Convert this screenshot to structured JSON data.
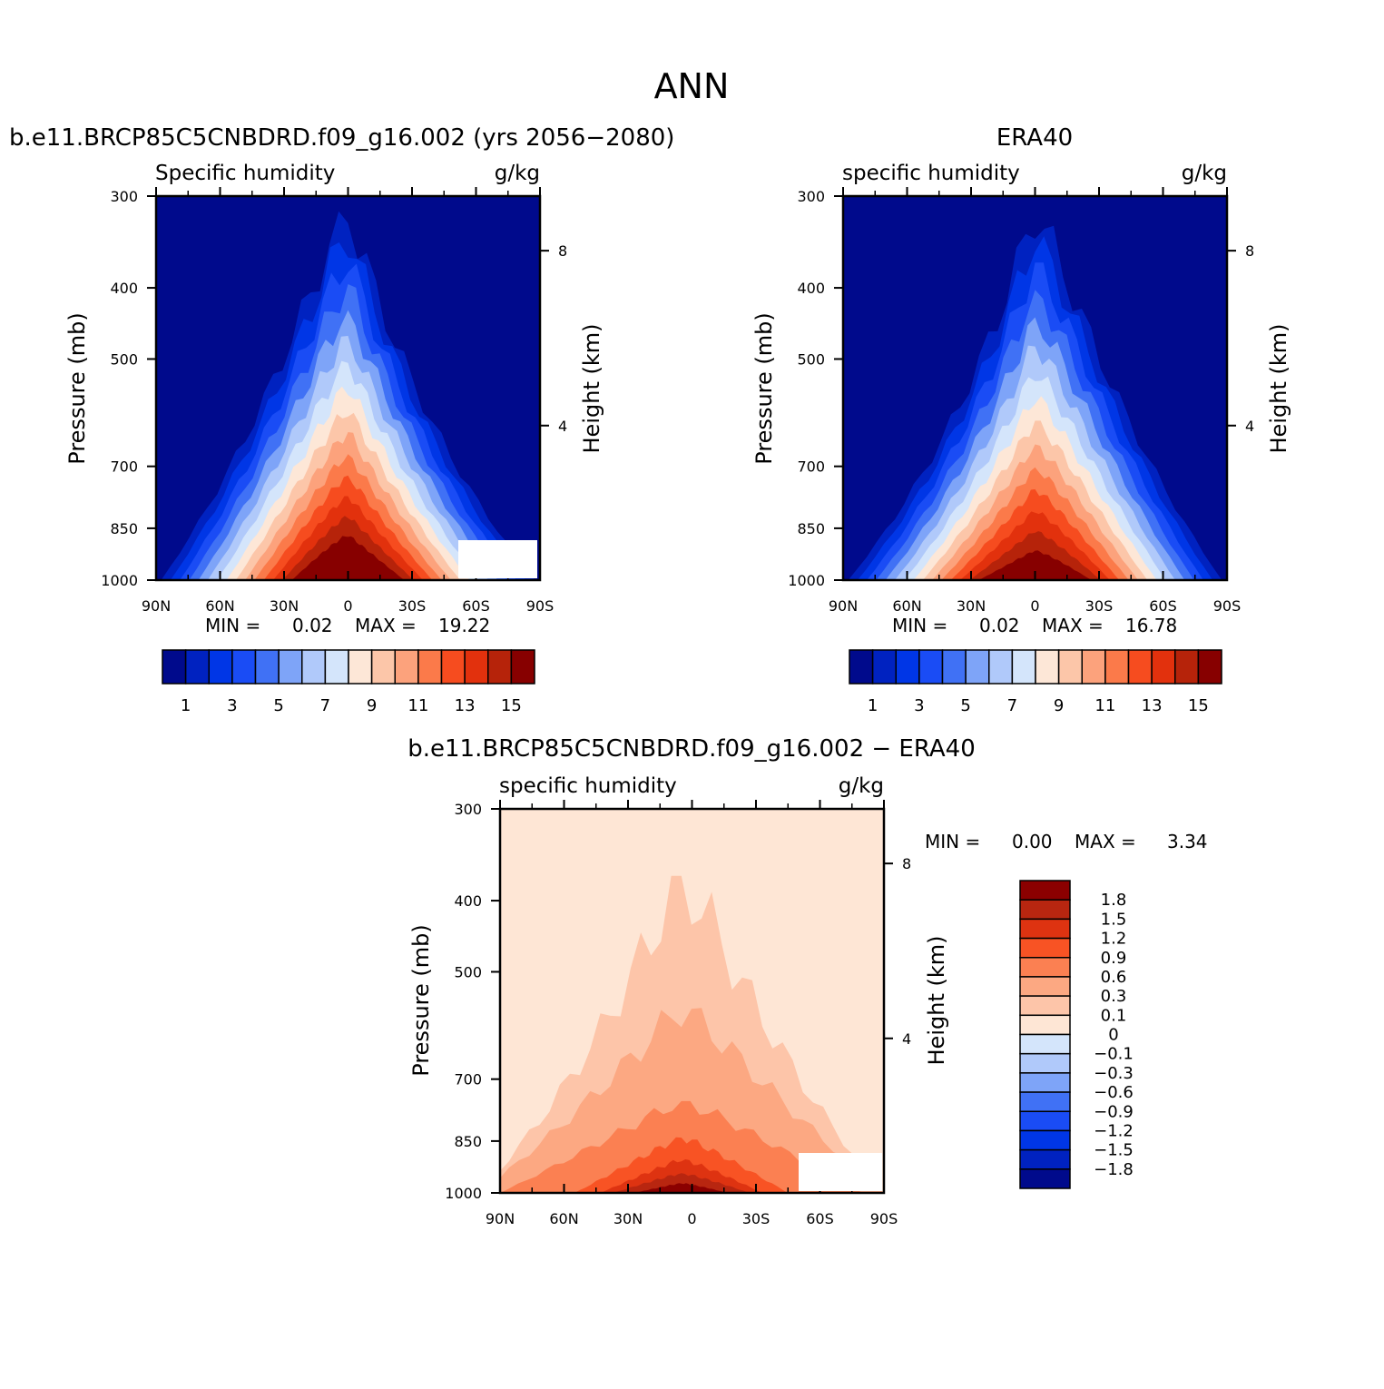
{
  "figure_title": "ANN",
  "difference_colors": [
    "#fee6d5",
    "#fdc5a9",
    "#fca882",
    "#fb8052",
    "#f85324",
    "#de3311",
    "#b82610",
    "#8b0000"
  ],
  "chart_data": [
    {
      "type": "heatmap",
      "title": "b.e11.BRCP85C5CNBDRD.f09_g16.002 (yrs 2056−2080)",
      "variable_label": "Specific humidity",
      "units": "g/kg",
      "xlabel": "",
      "ylabel": "Pressure (mb)",
      "ylabel_right": "Height (km)",
      "x_ticks": [
        "90N",
        "60N",
        "30N",
        "0",
        "30S",
        "60S",
        "90S"
      ],
      "x_range": [
        90,
        -90
      ],
      "y_ticks": [
        "300",
        "400",
        "500",
        "700",
        "850",
        "1000"
      ],
      "y_range_mb": [
        300,
        1000
      ],
      "height_ticks": [
        "8",
        "4"
      ],
      "surface_humidity_peak_lat": 0,
      "surface_humidity_peak_gkg": 19.22,
      "min_label": "MIN =",
      "min_value": "0.02",
      "max_label": "MAX =",
      "max_value": "19.22",
      "contour_levels": [
        1,
        2,
        3,
        4,
        5,
        6,
        7,
        8,
        9,
        10,
        11,
        12,
        13,
        14,
        15
      ],
      "colorbar_ticks": [
        "1",
        "3",
        "5",
        "7",
        "9",
        "11",
        "13",
        "15"
      ],
      "colorbar_colors": [
        "#000a8c",
        "#0022c0",
        "#0036e6",
        "#1a4cf5",
        "#4071f5",
        "#7ea4f8",
        "#b0c9fa",
        "#d4e5fb",
        "#fde7d7",
        "#fcc6a9",
        "#fca27c",
        "#fb7a4a",
        "#f64c1f",
        "#e2310d",
        "#b6230a",
        "#870000"
      ]
    },
    {
      "type": "heatmap",
      "title": "ERA40",
      "variable_label": "specific humidity",
      "units": "g/kg",
      "xlabel": "",
      "ylabel": "Pressure (mb)",
      "ylabel_right": "Height (km)",
      "x_ticks": [
        "90N",
        "60N",
        "30N",
        "0",
        "30S",
        "60S",
        "90S"
      ],
      "x_range": [
        90,
        -90
      ],
      "y_ticks": [
        "300",
        "400",
        "500",
        "700",
        "850",
        "1000"
      ],
      "y_range_mb": [
        300,
        1000
      ],
      "height_ticks": [
        "8",
        "4"
      ],
      "surface_humidity_peak_lat": 0,
      "surface_humidity_peak_gkg": 16.78,
      "min_label": "MIN =",
      "min_value": "0.02",
      "max_label": "MAX =",
      "max_value": "16.78",
      "contour_levels": [
        1,
        2,
        3,
        4,
        5,
        6,
        7,
        8,
        9,
        10,
        11,
        12,
        13,
        14,
        15
      ],
      "colorbar_ticks": [
        "1",
        "3",
        "5",
        "7",
        "9",
        "11",
        "13",
        "15"
      ],
      "colorbar_colors": [
        "#000a8c",
        "#0022c0",
        "#0036e6",
        "#1a4cf5",
        "#4071f5",
        "#7ea4f8",
        "#b0c9fa",
        "#d4e5fb",
        "#fde7d7",
        "#fcc6a9",
        "#fca27c",
        "#fb7a4a",
        "#f64c1f",
        "#e2310d",
        "#b6230a",
        "#870000"
      ]
    },
    {
      "type": "heatmap",
      "title": "b.e11.BRCP85C5CNBDRD.f09_g16.002 − ERA40",
      "variable_label": "specific humidity",
      "units": "g/kg",
      "xlabel": "",
      "ylabel": "Pressure (mb)",
      "ylabel_right": "Height (km)",
      "x_ticks": [
        "90N",
        "60N",
        "30N",
        "0",
        "30S",
        "60S",
        "90S"
      ],
      "x_range": [
        90,
        -90
      ],
      "y_ticks": [
        "300",
        "400",
        "500",
        "700",
        "850",
        "1000"
      ],
      "y_range_mb": [
        300,
        1000
      ],
      "height_ticks": [
        "8",
        "4"
      ],
      "min_label": "MIN =",
      "min_value": "0.00",
      "max_label": "MAX =",
      "max_value": "3.34",
      "contour_levels": [
        -1.8,
        -1.5,
        -1.2,
        -0.9,
        -0.6,
        -0.3,
        -0.1,
        0,
        0.1,
        0.3,
        0.6,
        0.9,
        1.2,
        1.5,
        1.8
      ],
      "colorbar_ticks": [
        "1.8",
        "1.5",
        "1.2",
        "0.9",
        "0.6",
        "0.3",
        "0.1",
        "0",
        "−0.1",
        "−0.3",
        "−0.6",
        "−0.9",
        "−1.2",
        "−1.5",
        "−1.8"
      ],
      "colorbar_colors": [
        "#8b0000",
        "#b82610",
        "#de3311",
        "#f85324",
        "#fb8052",
        "#fca882",
        "#fdc5a9",
        "#fee6d5",
        "#d4e5fb",
        "#b0c9fa",
        "#7ea4f8",
        "#4071f5",
        "#1a4cf5",
        "#0036e6",
        "#0022c0",
        "#000a8c"
      ]
    }
  ]
}
